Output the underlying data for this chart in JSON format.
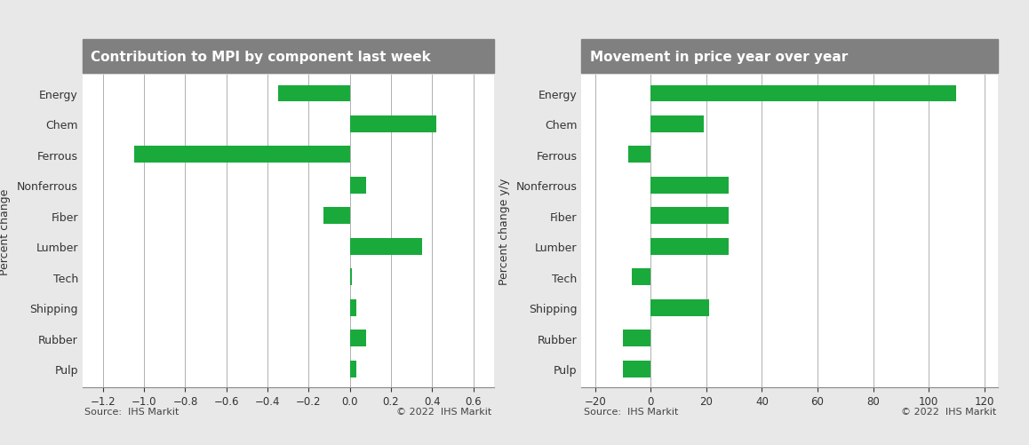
{
  "categories": [
    "Energy",
    "Chem",
    "Ferrous",
    "Nonferrous",
    "Fiber",
    "Lumber",
    "Tech",
    "Shipping",
    "Rubber",
    "Pulp"
  ],
  "left_values": [
    -0.35,
    0.42,
    -1.05,
    0.08,
    -0.13,
    0.35,
    0.01,
    0.03,
    0.08,
    0.03
  ],
  "right_values": [
    110,
    19,
    -8,
    28,
    28,
    28,
    -7,
    21,
    -10,
    -10
  ],
  "left_title": "Contribution to MPI by component last week",
  "right_title": "Movement in price year over year",
  "left_ylabel": "Percent change",
  "right_ylabel": "Percent change y/y",
  "left_xlim": [
    -1.3,
    0.7
  ],
  "right_xlim": [
    -25,
    125
  ],
  "left_xticks": [
    -1.2,
    -1.0,
    -0.8,
    -0.6,
    -0.4,
    -0.2,
    0.0,
    0.2,
    0.4,
    0.6
  ],
  "right_xticks": [
    -20,
    0,
    20,
    40,
    60,
    80,
    100,
    120
  ],
  "bar_color": "#1aaa3c",
  "bg_color": "#e8e8e8",
  "plot_bg_color": "#ffffff",
  "title_bg_color": "#808080",
  "title_text_color": "#ffffff",
  "grid_color": "#b0b0b0",
  "axis_color": "#888888",
  "source_text": "Source:  IHS Markit",
  "copyright_text": "© 2022  IHS Markit",
  "title_fontsize": 11,
  "cat_fontsize": 9,
  "tick_fontsize": 8.5,
  "ylabel_fontsize": 9,
  "source_fontsize": 8
}
